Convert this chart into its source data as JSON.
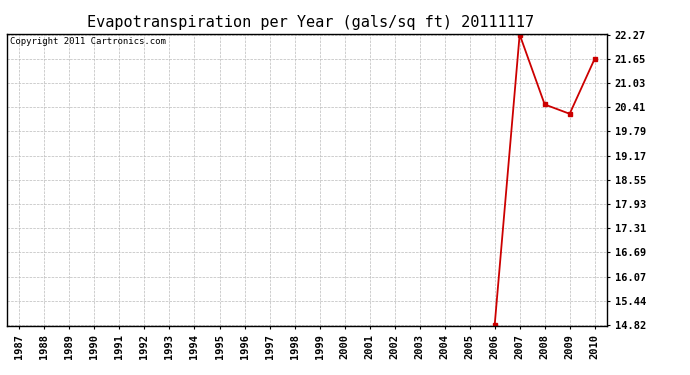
{
  "title": "Evapotranspiration per Year (gals/sq ft) 20111117",
  "copyright": "Copyright 2011 Cartronics.com",
  "x_years": [
    1987,
    1988,
    1989,
    1990,
    1991,
    1992,
    1993,
    1994,
    1995,
    1996,
    1997,
    1998,
    1999,
    2000,
    2001,
    2002,
    2003,
    2004,
    2005,
    2006,
    2007,
    2008,
    2009,
    2010
  ],
  "data_x": [
    2006,
    2007,
    2008,
    2009,
    2010
  ],
  "data_y": [
    14.82,
    22.27,
    20.48,
    20.24,
    21.65
  ],
  "yticks": [
    14.82,
    15.44,
    16.07,
    16.69,
    17.31,
    17.93,
    18.55,
    19.17,
    19.79,
    20.41,
    21.03,
    21.65,
    22.27
  ],
  "ymin": 14.82,
  "ymax": 22.27,
  "line_color": "#cc0000",
  "marker": "s",
  "marker_size": 3,
  "bg_color": "#ffffff",
  "grid_color": "#bbbbbb",
  "title_fontsize": 11,
  "tick_fontsize": 7.5,
  "copyright_fontsize": 6.5
}
